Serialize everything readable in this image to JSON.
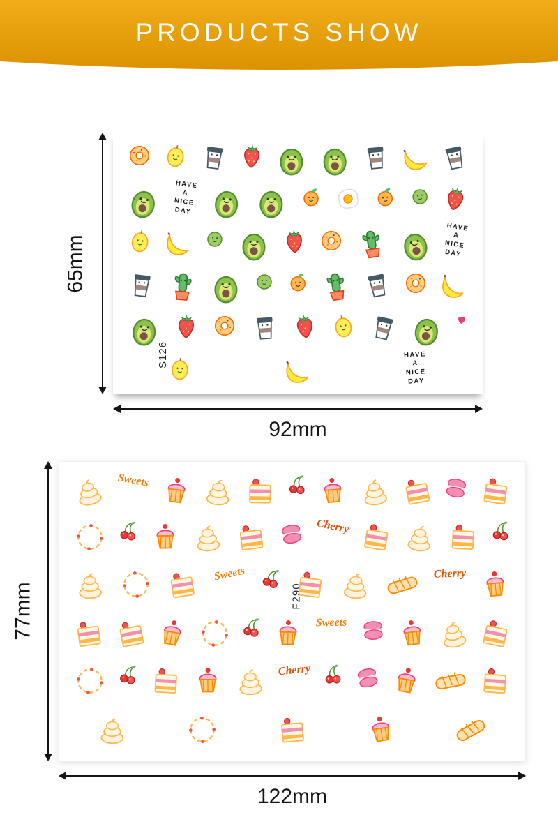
{
  "banner": {
    "title": "PRODUCTS SHOW"
  },
  "colors": {
    "banner_gold_top": "#F2AC19",
    "banner_gold_bottom": "#DB9200",
    "dimension_line": "#141414",
    "script_word_orange": "#F57C00"
  },
  "products": [
    {
      "code": "S126",
      "width_label": "92mm",
      "height_label": "65mm",
      "phrase_lines": [
        "HAVE",
        "A",
        "NICE",
        "DAY"
      ],
      "theme": "fruit-avocado-cartoon-nail-stickers",
      "stickers": [
        "donut",
        "lemon",
        "coffee",
        "strawberry",
        "avocado",
        "avocado",
        "coffee",
        "banana",
        "coffee",
        "avocado",
        "phrase",
        "avocado",
        "avocado",
        "orange",
        "egg",
        "orange",
        "lime",
        "strawberry",
        "lemon",
        "banana",
        "lime",
        "avocado",
        "strawberry",
        "donut",
        "cactus",
        "avocado",
        "phrase",
        "coffee",
        "cactus",
        "avocado",
        "lime",
        "orange",
        "cactus",
        "coffee",
        "donut",
        "banana",
        "avocado",
        "strawberry",
        "donut",
        "coffee",
        "strawberry",
        "lemon",
        "coffee",
        "avocado",
        "heart",
        "lemon",
        "banana",
        "phrase"
      ]
    },
    {
      "code": "F290",
      "width_label": "122mm",
      "height_label": "77mm",
      "script_words": {
        "sweets": "Sweets",
        "cherry": "Cherry"
      },
      "theme": "sweets-cake-cherry-nail-stickers",
      "stickers": [
        "swirl",
        "sweets-text",
        "cupcake",
        "swirl",
        "cake",
        "cherry",
        "cupcake",
        "swirl",
        "cake",
        "macaron",
        "cake",
        "wreath",
        "cherry",
        "cupcake",
        "swirl",
        "cake",
        "macaron",
        "cherry-text",
        "cake",
        "swirl",
        "cake",
        "cherry",
        "swirl",
        "wreath",
        "cake",
        "sweets-text",
        "cherry",
        "cake",
        "swirl",
        "pastry",
        "cherry-text",
        "cupcake",
        "cake",
        "cake",
        "cupcake",
        "wreath",
        "cherry",
        "cupcake",
        "sweets-text",
        "macaron",
        "cupcake",
        "swirl",
        "cake",
        "wreath",
        "cherry",
        "cake",
        "cupcake",
        "swirl",
        "cherry-text",
        "cherry",
        "macaron",
        "cupcake",
        "pastry",
        "cake",
        "swirl",
        "wreath",
        "cake",
        "cupcake",
        "pastry"
      ]
    }
  ]
}
